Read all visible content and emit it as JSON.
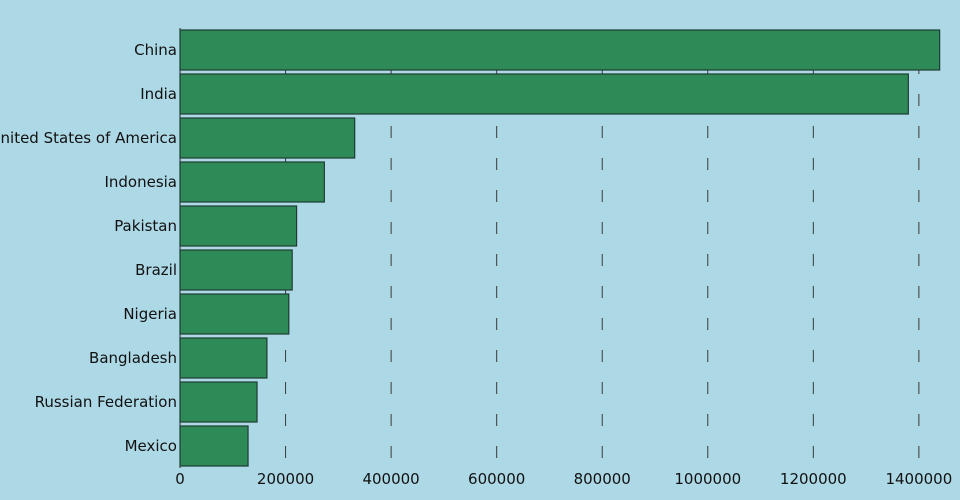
{
  "chart_data": {
    "type": "bar",
    "orientation": "horizontal",
    "title": "",
    "xlabel": "",
    "ylabel": "",
    "categories": [
      "China",
      "India",
      "United States of America",
      "Indonesia",
      "Pakistan",
      "Brazil",
      "Nigeria",
      "Bangladesh",
      "Russian Federation",
      "Mexico"
    ],
    "values": [
      1439324,
      1380004,
      331003,
      273524,
      220892,
      212559,
      206140,
      164689,
      145934,
      128933
    ],
    "xlim": [
      0,
      1440000
    ],
    "xticks": [
      0,
      200000,
      400000,
      600000,
      800000,
      1000000,
      1200000,
      1400000
    ],
    "xtick_labels": [
      "0",
      "200000",
      "400000",
      "600000",
      "800000",
      "1000000",
      "1200000",
      "1400000"
    ],
    "grid": "vertical dashed",
    "legend": "none",
    "colors": {
      "bar": "#2e8b57",
      "background": "#add8e6"
    }
  }
}
